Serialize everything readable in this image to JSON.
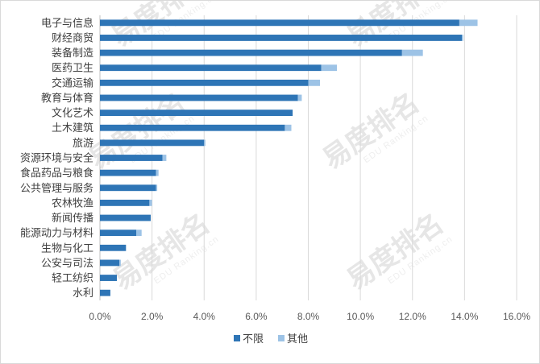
{
  "chart_data": {
    "type": "bar",
    "orientation": "horizontal",
    "stacked": true,
    "categories": [
      "电子与信息",
      "财经商贸",
      "装备制造",
      "医药卫生",
      "交通运输",
      "教育与体育",
      "文化艺术",
      "土木建筑",
      "旅游",
      "资源环境与安全",
      "食品药品与粮食",
      "公共管理与服务",
      "农林牧渔",
      "新闻传播",
      "能源动力与材料",
      "生物与化工",
      "公安与司法",
      "轻工纺织",
      "水利"
    ],
    "series": [
      {
        "name": "不限",
        "color": "#2e75b6",
        "values": [
          13.8,
          13.9,
          11.6,
          8.5,
          8.0,
          7.6,
          7.4,
          7.1,
          4.0,
          2.4,
          2.15,
          2.15,
          1.9,
          1.95,
          1.4,
          1.0,
          0.75,
          0.65,
          0.4
        ]
      },
      {
        "name": "其他",
        "color": "#9dc3e6",
        "values": [
          0.7,
          0.05,
          0.8,
          0.6,
          0.45,
          0.15,
          0.0,
          0.25,
          0.05,
          0.15,
          0.1,
          0.05,
          0.1,
          0.0,
          0.2,
          0.0,
          0.05,
          0.0,
          0.0
        ]
      }
    ],
    "xlim": [
      0,
      16
    ],
    "xticks": [
      "0.0%",
      "2.0%",
      "4.0%",
      "6.0%",
      "8.0%",
      "10.0%",
      "12.0%",
      "14.0%",
      "16.0%"
    ],
    "xtick_values": [
      0,
      2,
      4,
      6,
      8,
      10,
      12,
      14,
      16
    ],
    "grid": true,
    "legend_position": "bottom"
  },
  "watermark": {
    "text": "易度排名",
    "sub": "EDU Ranking.cn",
    "color": "#e6e6e6"
  }
}
